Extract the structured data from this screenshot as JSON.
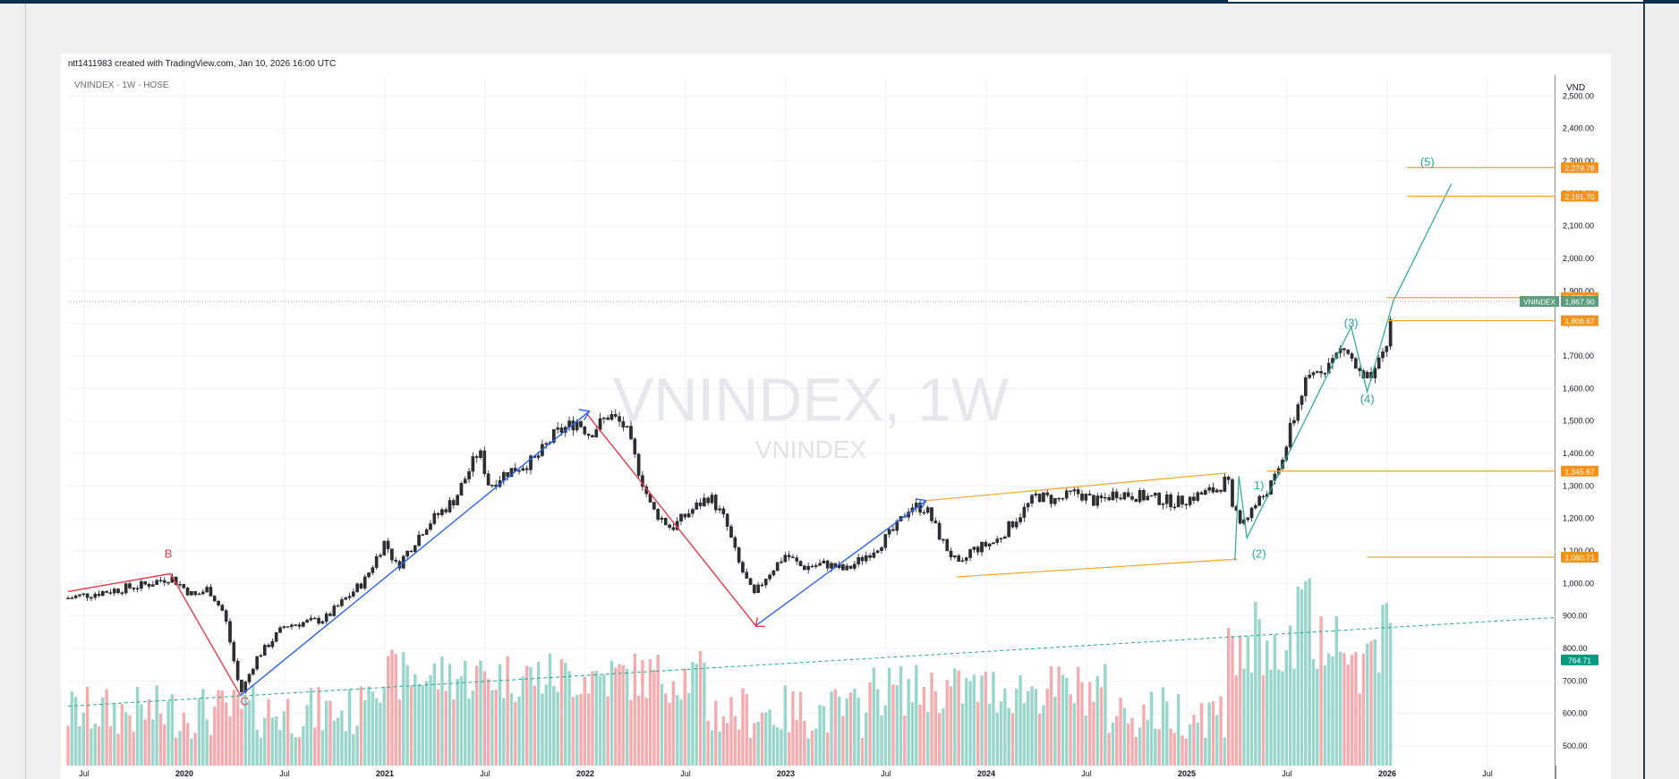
{
  "header": {
    "credit": "ntt1411983 created with TradingView.com, Jan 10, 2026 16:00 UTC"
  },
  "chart_data": {
    "type": "candlestick",
    "symbol_label": "VNINDEX · 1W · HOSE",
    "watermark_main": "VNINDEX, 1W",
    "watermark_sub": "VNINDEX",
    "currency": "VND",
    "ylim": [
      460,
      2520
    ],
    "y_ticks": [
      "500.00",
      "600.00",
      "700.00",
      "800.00",
      "900.00",
      "1,000.00",
      "1,100.00",
      "1,200.00",
      "1,300.00",
      "1,400.00",
      "1,500.00",
      "1,600.00",
      "1,700.00",
      "1,800.00",
      "1,900.00",
      "2,000.00",
      "2,100.00",
      "2,200.00",
      "2,300.00",
      "2,400.00",
      "2,500.00"
    ],
    "x_ticks": [
      {
        "label": "Jul",
        "t": 2019.5
      },
      {
        "label": "2020",
        "t": 2020.0
      },
      {
        "label": "Jul",
        "t": 2020.5
      },
      {
        "label": "2021",
        "t": 2021.0
      },
      {
        "label": "Jul",
        "t": 2021.5
      },
      {
        "label": "2022",
        "t": 2022.0
      },
      {
        "label": "Jul",
        "t": 2022.5
      },
      {
        "label": "2023",
        "t": 2023.0
      },
      {
        "label": "Jul",
        "t": 2023.5
      },
      {
        "label": "2024",
        "t": 2024.0
      },
      {
        "label": "Jul",
        "t": 2024.5
      },
      {
        "label": "2025",
        "t": 2025.0
      },
      {
        "label": "Jul",
        "t": 2025.5
      },
      {
        "label": "2026",
        "t": 2026.0
      },
      {
        "label": "Jul",
        "t": 2026.5
      }
    ],
    "price_path": [
      [
        2019.42,
        955
      ],
      [
        2019.6,
        975
      ],
      [
        2019.8,
        995
      ],
      [
        2019.93,
        1020
      ],
      [
        2020.05,
        960
      ],
      [
        2020.12,
        985
      ],
      [
        2020.2,
        905
      ],
      [
        2020.28,
        660
      ],
      [
        2020.36,
        770
      ],
      [
        2020.5,
        870
      ],
      [
        2020.7,
        890
      ],
      [
        2020.9,
        1010
      ],
      [
        2021.0,
        1130
      ],
      [
        2021.06,
        1050
      ],
      [
        2021.2,
        1175
      ],
      [
        2021.35,
        1260
      ],
      [
        2021.47,
        1410
      ],
      [
        2021.52,
        1300
      ],
      [
        2021.6,
        1340
      ],
      [
        2021.75,
        1380
      ],
      [
        2021.85,
        1460
      ],
      [
        2021.96,
        1500
      ],
      [
        2022.02,
        1460
      ],
      [
        2022.12,
        1520
      ],
      [
        2022.2,
        1480
      ],
      [
        2022.26,
        1360
      ],
      [
        2022.33,
        1230
      ],
      [
        2022.43,
        1170
      ],
      [
        2022.52,
        1220
      ],
      [
        2022.62,
        1270
      ],
      [
        2022.7,
        1190
      ],
      [
        2022.76,
        1070
      ],
      [
        2022.84,
        960
      ],
      [
        2022.9,
        1020
      ],
      [
        2023.0,
        1090
      ],
      [
        2023.08,
        1050
      ],
      [
        2023.2,
        1060
      ],
      [
        2023.3,
        1040
      ],
      [
        2023.45,
        1110
      ],
      [
        2023.55,
        1170
      ],
      [
        2023.62,
        1240
      ],
      [
        2023.7,
        1230
      ],
      [
        2023.78,
        1130
      ],
      [
        2023.87,
        1045
      ],
      [
        2023.92,
        1100
      ],
      [
        2024.05,
        1130
      ],
      [
        2024.15,
        1200
      ],
      [
        2024.25,
        1270
      ],
      [
        2024.35,
        1255
      ],
      [
        2024.45,
        1280
      ],
      [
        2024.55,
        1250
      ],
      [
        2024.65,
        1280
      ],
      [
        2024.75,
        1270
      ],
      [
        2024.85,
        1260
      ],
      [
        2024.95,
        1250
      ],
      [
        2025.05,
        1270
      ],
      [
        2025.15,
        1290
      ],
      [
        2025.2,
        1320
      ],
      [
        2025.26,
        1180
      ],
      [
        2025.3,
        1210
      ],
      [
        2025.38,
        1270
      ],
      [
        2025.45,
        1330
      ],
      [
        2025.52,
        1480
      ],
      [
        2025.58,
        1600
      ],
      [
        2025.65,
        1660
      ],
      [
        2025.72,
        1680
      ],
      [
        2025.78,
        1730
      ],
      [
        2025.82,
        1690
      ],
      [
        2025.88,
        1620
      ],
      [
        2025.94,
        1640
      ],
      [
        2026.0,
        1740
      ],
      [
        2026.03,
        1868
      ]
    ],
    "elliott_waves": [
      {
        "points": [
          [
            "2019.42",
            975
          ],
          [
            "2019.93",
            1030
          ],
          [
            "2020.28",
            655
          ]
        ],
        "color": "#f23645"
      },
      {
        "points": [
          [
            "2022.01",
            1520
          ],
          [
            "2022.85",
            870
          ]
        ],
        "color": "#f23645"
      },
      {
        "points": [
          [
            "2020.28",
            655
          ],
          [
            "2022.02",
            1530
          ]
        ],
        "color": "#2962ff"
      },
      {
        "points": [
          [
            "2022.85",
            870
          ],
          [
            "2023.7",
            1255
          ]
        ],
        "color": "#2962ff"
      }
    ],
    "wave_labels": [
      {
        "text": "B",
        "t": 2019.92,
        "price": 1080,
        "color": "#f23645"
      },
      {
        "text": "C",
        "t": 2020.3,
        "price": 625,
        "color": "#f23645"
      },
      {
        "text": "1)",
        "t": 2025.36,
        "price": 1290,
        "color": "#22ab94"
      },
      {
        "text": "(2)",
        "t": 2025.36,
        "price": 1080,
        "color": "#22ab94"
      },
      {
        "text": "(3)",
        "t": 2025.82,
        "price": 1790,
        "color": "#22ab94"
      },
      {
        "text": "(4)",
        "t": 2025.9,
        "price": 1555,
        "color": "#22ab94"
      },
      {
        "text": "(5)",
        "t": 2026.2,
        "price": 2285,
        "color": "#22ab94"
      }
    ],
    "price_tags": [
      {
        "text": "2,279.78",
        "price": 2279.78,
        "color": "#f7931a"
      },
      {
        "text": "2,191.70",
        "price": 2191.7,
        "color": "#f7931a"
      },
      {
        "text": "1,879.75",
        "price": 1879.75,
        "color": "#f7931a"
      },
      {
        "text": "1,867.90",
        "price": 1867.9,
        "color": "#5b9e7d",
        "name": "VNINDEX"
      },
      {
        "text": "1,808.67",
        "price": 1808.67,
        "color": "#f7931a"
      },
      {
        "text": "1,345.67",
        "price": 1345.67,
        "color": "#f7931a"
      },
      {
        "text": "1,080.71",
        "price": 1080.71,
        "color": "#f7931a"
      },
      {
        "text": "764.71",
        "price": 764.71,
        "color": "#089981"
      }
    ],
    "last_price": 1867.9,
    "up_color": "#089981",
    "down_color": "#f23645",
    "line_orange": "#f5a623"
  }
}
